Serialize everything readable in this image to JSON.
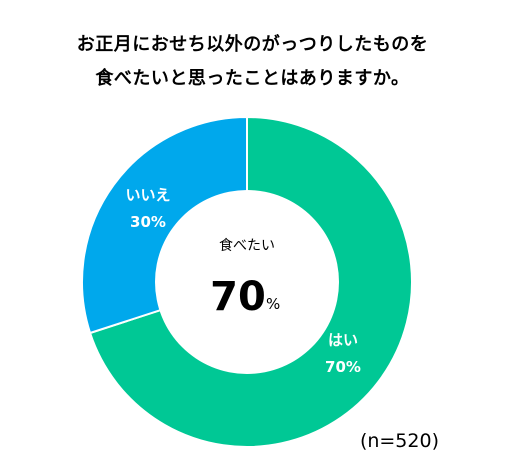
{
  "title_line1": "お正月におせち以外のがっつりしたものを",
  "title_line2": "食べたいと思ったことはありますか。",
  "sample_note": "(n=520)",
  "chart_data": {
    "type": "pie",
    "donut": true,
    "slices": [
      {
        "label": "はい",
        "value": 70,
        "value_label": "70%",
        "color": "#00C895"
      },
      {
        "label": "いいえ",
        "value": 30,
        "value_label": "30%",
        "color": "#00A8EC"
      }
    ],
    "center": {
      "label": "食べたい",
      "value": "70",
      "unit": "%"
    }
  }
}
